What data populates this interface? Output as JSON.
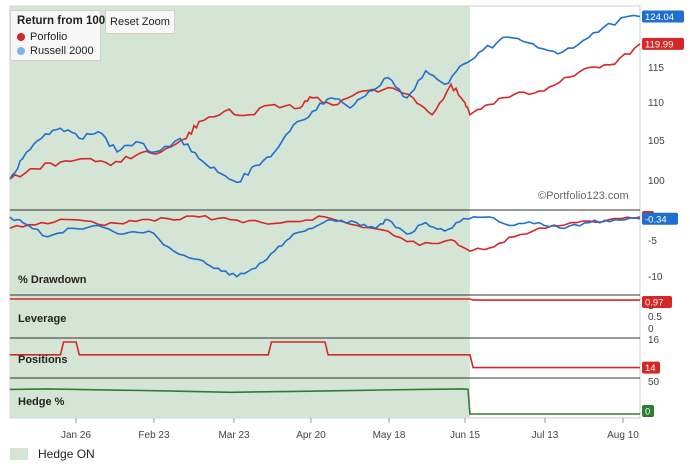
{
  "legend": {
    "title": "Return from 100",
    "items": [
      {
        "label": "Porfolio",
        "color": "#d62728"
      },
      {
        "label": "Russell 2000",
        "color": "#7cb5ec"
      }
    ]
  },
  "reset_zoom_label": "Reset Zoom",
  "watermark": "©Portfolio123.com",
  "footer_legend": {
    "label": "Hedge ON",
    "color": "#d5e5d5"
  },
  "colors": {
    "portfolio": "#d62728",
    "russell": "#1f6fd1",
    "hedge": "#2e7d32",
    "shade": "#d5e5d5"
  },
  "x_axis": {
    "ticks": [
      "Jan 26",
      "Feb 23",
      "Mar 23",
      "Apr 20",
      "May 18",
      "Jun 15",
      "Jul 13",
      "Aug 10"
    ]
  },
  "chart_data": [
    {
      "type": "line",
      "title": "Return from 100",
      "shaded_region": {
        "label": "Hedge ON",
        "x_start": 0,
        "x_end": 0.73
      },
      "y_ticks": [
        "100",
        "105",
        "110",
        "115"
      ],
      "ylim": [
        96,
        125
      ],
      "series": [
        {
          "name": "Porfolio",
          "end_label": "119.99",
          "points": [
            [
              0,
              100
            ],
            [
              0.04,
              101.5
            ],
            [
              0.08,
              102.5
            ],
            [
              0.12,
              103
            ],
            [
              0.16,
              102
            ],
            [
              0.2,
              103.5
            ],
            [
              0.24,
              104
            ],
            [
              0.28,
              106
            ],
            [
              0.3,
              108.5
            ],
            [
              0.34,
              110
            ],
            [
              0.38,
              109.5
            ],
            [
              0.42,
              111
            ],
            [
              0.46,
              110.5
            ],
            [
              0.48,
              112
            ],
            [
              0.52,
              111
            ],
            [
              0.56,
              113
            ],
            [
              0.6,
              113.5
            ],
            [
              0.64,
              112
            ],
            [
              0.67,
              109.5
            ],
            [
              0.7,
              114
            ],
            [
              0.72,
              111.5
            ],
            [
              0.73,
              109.5
            ],
            [
              0.76,
              111
            ],
            [
              0.8,
              112.5
            ],
            [
              0.84,
              113
            ],
            [
              0.88,
              115
            ],
            [
              0.92,
              116.5
            ],
            [
              0.96,
              117
            ],
            [
              1.0,
              119.99
            ]
          ]
        },
        {
          "name": "Russell 2000",
          "end_label": "124.04",
          "points": [
            [
              0,
              100
            ],
            [
              0.02,
              103
            ],
            [
              0.05,
              106
            ],
            [
              0.08,
              107.5
            ],
            [
              0.11,
              106
            ],
            [
              0.14,
              107
            ],
            [
              0.17,
              104
            ],
            [
              0.2,
              105.5
            ],
            [
              0.23,
              104
            ],
            [
              0.27,
              106
            ],
            [
              0.3,
              103
            ],
            [
              0.33,
              101
            ],
            [
              0.36,
              99.5
            ],
            [
              0.39,
              102
            ],
            [
              0.42,
              104
            ],
            [
              0.45,
              108
            ],
            [
              0.48,
              110
            ],
            [
              0.51,
              112
            ],
            [
              0.54,
              110.5
            ],
            [
              0.57,
              113
            ],
            [
              0.6,
              115
            ],
            [
              0.63,
              112
            ],
            [
              0.66,
              116
            ],
            [
              0.69,
              114
            ],
            [
              0.72,
              117
            ],
            [
              0.75,
              119
            ],
            [
              0.79,
              121
            ],
            [
              0.83,
              120
            ],
            [
              0.87,
              118.5
            ],
            [
              0.91,
              120.5
            ],
            [
              0.95,
              123
            ],
            [
              1.0,
              124.04
            ]
          ]
        }
      ]
    },
    {
      "type": "line",
      "title": "% Drawdown",
      "y_ticks": [
        "-5",
        "-10"
      ],
      "ylim": [
        -13,
        0.5
      ],
      "series": [
        {
          "name": "Porfolio",
          "end_label": "0",
          "points": [
            [
              0,
              -2
            ],
            [
              0.05,
              -1
            ],
            [
              0.1,
              -0.5
            ],
            [
              0.15,
              -1.5
            ],
            [
              0.2,
              -0.8
            ],
            [
              0.25,
              -0.3
            ],
            [
              0.3,
              0
            ],
            [
              0.35,
              -0.5
            ],
            [
              0.4,
              -1
            ],
            [
              0.45,
              -0.8
            ],
            [
              0.5,
              0
            ],
            [
              0.55,
              -1.5
            ],
            [
              0.6,
              -2.5
            ],
            [
              0.65,
              -5
            ],
            [
              0.7,
              -4
            ],
            [
              0.73,
              -6
            ],
            [
              0.76,
              -5.5
            ],
            [
              0.8,
              -3.5
            ],
            [
              0.85,
              -2
            ],
            [
              0.9,
              -1
            ],
            [
              0.95,
              -0.5
            ],
            [
              1.0,
              0
            ]
          ]
        },
        {
          "name": "Russell 2000",
          "end_label": "-0.34",
          "points": [
            [
              0,
              0
            ],
            [
              0.02,
              -1
            ],
            [
              0.06,
              -3.5
            ],
            [
              0.1,
              -2
            ],
            [
              0.14,
              -1.5
            ],
            [
              0.18,
              -3
            ],
            [
              0.22,
              -2.5
            ],
            [
              0.26,
              -6
            ],
            [
              0.3,
              -7.5
            ],
            [
              0.33,
              -9
            ],
            [
              0.36,
              -10.5
            ],
            [
              0.39,
              -9
            ],
            [
              0.42,
              -6
            ],
            [
              0.45,
              -3
            ],
            [
              0.48,
              -2
            ],
            [
              0.51,
              -0.5
            ],
            [
              0.55,
              -1
            ],
            [
              0.58,
              -2
            ],
            [
              0.6,
              -0.5
            ],
            [
              0.63,
              -3
            ],
            [
              0.66,
              -1
            ],
            [
              0.69,
              -2.5
            ],
            [
              0.72,
              -0.3
            ],
            [
              0.76,
              0
            ],
            [
              0.8,
              -1.5
            ],
            [
              0.84,
              -1
            ],
            [
              0.88,
              -2
            ],
            [
              0.92,
              -1
            ],
            [
              0.96,
              -0.5
            ],
            [
              1.0,
              -0.34
            ]
          ]
        }
      ]
    },
    {
      "type": "line",
      "title": "Leverage",
      "y_ticks": [
        "1",
        "0.5",
        "0"
      ],
      "ylim": [
        0,
        1
      ],
      "series": [
        {
          "name": "Leverage",
          "end_label": "0.97",
          "points": [
            [
              0,
              1
            ],
            [
              0.73,
              1
            ],
            [
              0.735,
              0.97
            ],
            [
              1.0,
              0.97
            ]
          ]
        }
      ]
    },
    {
      "type": "line",
      "title": "Positions",
      "y_ticks": [
        "16",
        "14"
      ],
      "ylim": [
        13.5,
        16
      ],
      "series": [
        {
          "name": "Positions",
          "end_label": "14",
          "points": [
            [
              0,
              15
            ],
            [
              0.08,
              15
            ],
            [
              0.085,
              16
            ],
            [
              0.105,
              16
            ],
            [
              0.11,
              15
            ],
            [
              0.41,
              15
            ],
            [
              0.415,
              16
            ],
            [
              0.5,
              16
            ],
            [
              0.505,
              15
            ],
            [
              0.73,
              15
            ],
            [
              0.735,
              14
            ],
            [
              1.0,
              14
            ]
          ]
        }
      ]
    },
    {
      "type": "line",
      "title": "Hedge %",
      "y_ticks": [
        "50",
        "0"
      ],
      "ylim": [
        0,
        65
      ],
      "series": [
        {
          "name": "Hedge %",
          "end_label": "0",
          "points": [
            [
              0,
              50
            ],
            [
              0.06,
              51
            ],
            [
              0.15,
              49
            ],
            [
              0.25,
              47
            ],
            [
              0.35,
              44
            ],
            [
              0.45,
              46
            ],
            [
              0.55,
              48
            ],
            [
              0.65,
              50
            ],
            [
              0.72,
              51
            ],
            [
              0.727,
              50
            ],
            [
              0.73,
              0
            ],
            [
              1.0,
              0
            ]
          ]
        }
      ]
    }
  ]
}
